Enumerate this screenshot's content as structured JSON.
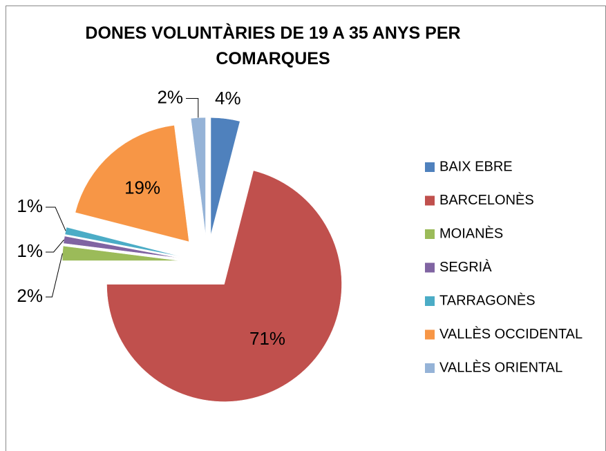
{
  "chart_data": {
    "type": "pie",
    "title": "DONES VOLUNTÀRIES DE 19 A 35 ANYS PER COMARQUES",
    "categories": [
      "BAIX EBRE",
      "BARCELONÈS",
      "MOIANÈS",
      "SEGRIÀ",
      "TARRAGONÈS",
      "VALLÈS OCCIDENTAL",
      "VALLÈS ORIENTAL"
    ],
    "values": [
      4,
      71,
      2,
      1,
      1,
      19,
      2
    ],
    "value_labels": [
      "4%",
      "71%",
      "2%",
      "1%",
      "1%",
      "19%",
      "2%"
    ],
    "colors": [
      "#4f81bd",
      "#c0504d",
      "#9bbb59",
      "#8064a2",
      "#4bacc6",
      "#f79646",
      "#95b3d7"
    ],
    "legend": "right"
  }
}
